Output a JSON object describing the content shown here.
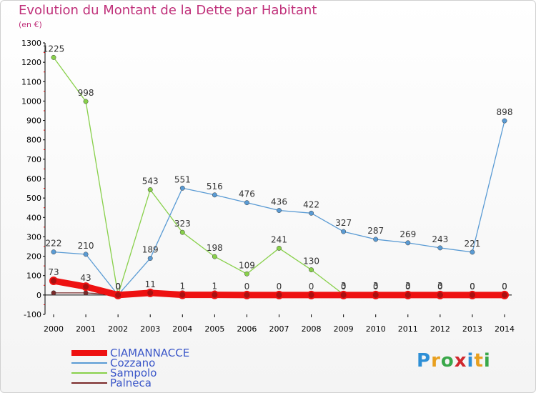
{
  "title": "Evolution du Montant de la Dette par Habitant",
  "subtitle": "(en €)",
  "logo": {
    "text": "Proxiti",
    "letters": [
      {
        "ch": "P",
        "color": "#2e8fd6"
      },
      {
        "ch": "r",
        "color": "#e8a020"
      },
      {
        "ch": "o",
        "color": "#3aa84a"
      },
      {
        "ch": "x",
        "color": "#d0282e"
      },
      {
        "ch": "i",
        "color": "#2e8fd6"
      },
      {
        "ch": "t",
        "color": "#e8a020"
      },
      {
        "ch": "i",
        "color": "#3aa84a"
      }
    ]
  },
  "chart_data": {
    "type": "line",
    "x": [
      "2000",
      "2001",
      "2002",
      "2003",
      "2004",
      "2005",
      "2006",
      "2007",
      "2008",
      "2009",
      "2010",
      "2011",
      "2012",
      "2013",
      "2014"
    ],
    "ylim": [
      -100,
      1300
    ],
    "yticks": [
      -100,
      0,
      100,
      200,
      300,
      400,
      500,
      600,
      700,
      800,
      900,
      1000,
      1100,
      1200,
      1300
    ],
    "grid": false,
    "legend_position": "bottom-left",
    "series": [
      {
        "name": "CIAMANNACCE",
        "color": "#ee1111",
        "values": [
          73,
          43,
          0,
          11,
          1,
          1,
          0,
          0,
          0,
          0,
          0,
          0,
          0,
          0,
          0
        ],
        "labels": [
          "73",
          "43",
          "0",
          "11",
          "1",
          "1",
          "0",
          "0",
          "0",
          "0",
          "0",
          "0",
          "0",
          "0",
          "0"
        ]
      },
      {
        "name": "Cozzano",
        "color": "#5a9bd4",
        "values": [
          222,
          210,
          0,
          189,
          551,
          516,
          476,
          436,
          422,
          327,
          287,
          269,
          243,
          221,
          898
        ],
        "labels": [
          "222",
          "210",
          "0",
          "189",
          "551",
          "516",
          "476",
          "436",
          "422",
          "327",
          "287",
          "269",
          "243",
          "221",
          "898"
        ]
      },
      {
        "name": "Sampolo",
        "color": "#88d04a",
        "values": [
          1225,
          998,
          0,
          543,
          323,
          198,
          109,
          241,
          130,
          3,
          3,
          3,
          3,
          0,
          0
        ],
        "labels": [
          "1225",
          "998",
          "0",
          "543",
          "323",
          "198",
          "109",
          "241",
          "130",
          "3",
          "3",
          "3",
          "3",
          "0",
          "0"
        ]
      },
      {
        "name": "Palneca",
        "color": "#7a2a2a",
        "values": [
          11,
          11,
          0,
          11,
          11,
          11,
          1,
          1,
          1,
          1,
          1,
          1,
          1,
          1,
          1
        ],
        "labels": [
          "",
          "",
          "",
          "",
          "",
          "",
          "",
          "",
          "",
          "",
          "",
          "",
          "",
          "",
          ""
        ]
      }
    ]
  }
}
